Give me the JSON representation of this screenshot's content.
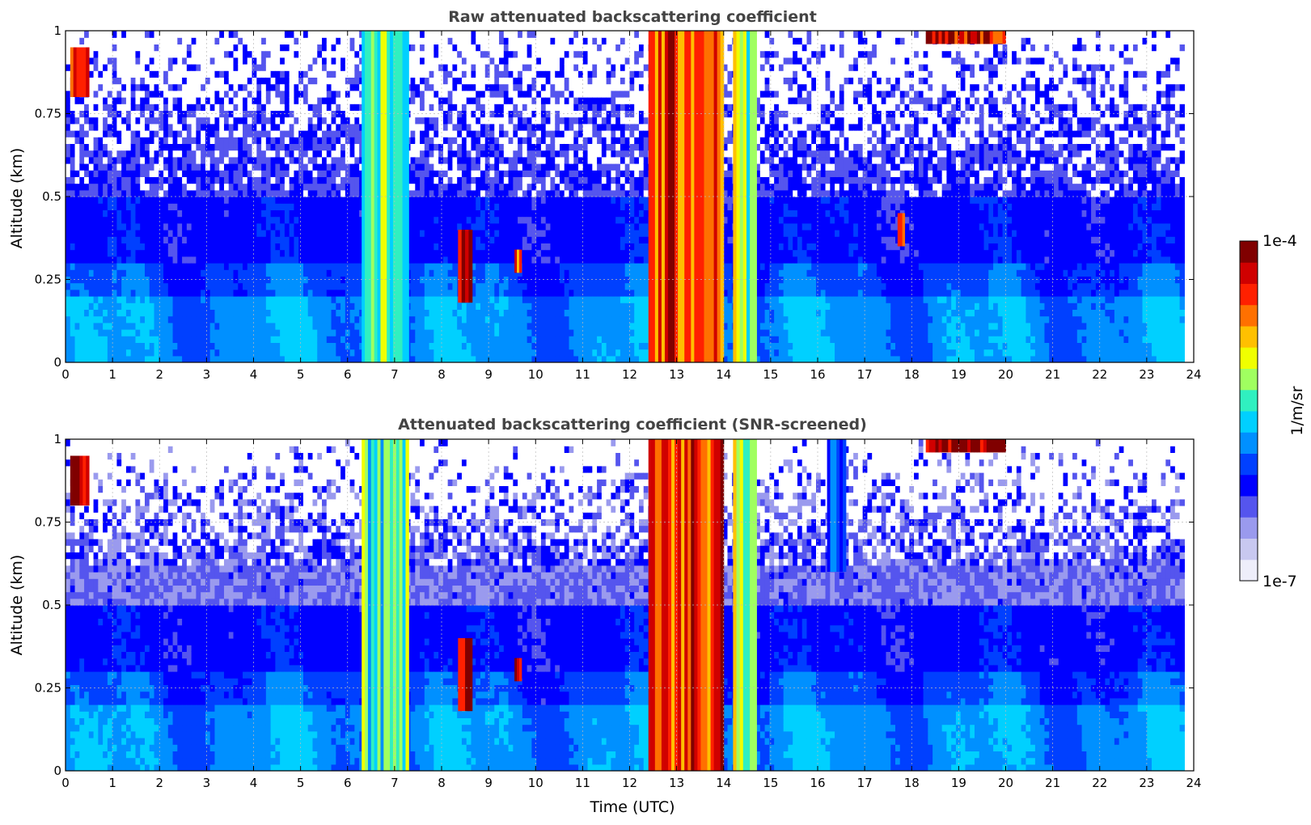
{
  "chart_data": [
    {
      "type": "heatmap",
      "title": "Raw attenuated backscattering coefficient",
      "xlabel": "",
      "ylabel": "Altitude (km)",
      "xlim": [
        0,
        24
      ],
      "ylim": [
        0,
        1
      ],
      "x_ticks": [
        "0",
        "1",
        "2",
        "3",
        "4",
        "5",
        "6",
        "7",
        "8",
        "9",
        "10",
        "11",
        "12",
        "13",
        "14",
        "15",
        "16",
        "17",
        "18",
        "19",
        "20",
        "21",
        "22",
        "23",
        "24"
      ],
      "y_ticks": [
        "0",
        "0.25",
        "0.5",
        "0.75",
        "1"
      ],
      "grid": true,
      "features": [
        {
          "t_start": 0.1,
          "t_end": 0.5,
          "alt_low": 0.8,
          "alt_high": 0.95,
          "level": 0.9
        },
        {
          "t_start": 6.3,
          "t_end": 7.3,
          "alt_low": 0.0,
          "alt_high": 1.0,
          "level": 0.55
        },
        {
          "t_start": 8.35,
          "t_end": 8.65,
          "alt_low": 0.18,
          "alt_high": 0.4,
          "level": 0.9
        },
        {
          "t_start": 9.55,
          "t_end": 9.7,
          "alt_low": 0.27,
          "alt_high": 0.34,
          "level": 0.8
        },
        {
          "t_start": 12.4,
          "t_end": 14.0,
          "alt_low": 0.0,
          "alt_high": 1.0,
          "level": 0.85
        },
        {
          "t_start": 14.2,
          "t_end": 14.7,
          "alt_low": 0.0,
          "alt_high": 1.0,
          "level": 0.6
        },
        {
          "t_start": 17.7,
          "t_end": 17.85,
          "alt_low": 0.35,
          "alt_high": 0.45,
          "level": 0.8
        },
        {
          "t_start": 18.3,
          "t_end": 20.0,
          "alt_low": 0.96,
          "alt_high": 1.0,
          "level": 0.9
        }
      ]
    },
    {
      "type": "heatmap",
      "title": "Attenuated backscattering coefficient (SNR-screened)",
      "xlabel": "Time (UTC)",
      "ylabel": "Altitude (km)",
      "xlim": [
        0,
        24
      ],
      "ylim": [
        0,
        1
      ],
      "x_ticks": [
        "0",
        "1",
        "2",
        "3",
        "4",
        "5",
        "6",
        "7",
        "8",
        "9",
        "10",
        "11",
        "12",
        "13",
        "14",
        "15",
        "16",
        "17",
        "18",
        "19",
        "20",
        "21",
        "22",
        "23",
        "24"
      ],
      "y_ticks": [
        "0",
        "0.25",
        "0.5",
        "0.75",
        "1"
      ],
      "grid": true,
      "features": [
        {
          "t_start": 0.1,
          "t_end": 0.5,
          "alt_low": 0.8,
          "alt_high": 0.95,
          "level": 1.0
        },
        {
          "t_start": 6.3,
          "t_end": 7.3,
          "alt_low": 0.0,
          "alt_high": 1.0,
          "level": 0.55
        },
        {
          "t_start": 8.35,
          "t_end": 8.65,
          "alt_low": 0.18,
          "alt_high": 0.4,
          "level": 1.0
        },
        {
          "t_start": 9.55,
          "t_end": 9.7,
          "alt_low": 0.27,
          "alt_high": 0.34,
          "level": 1.0
        },
        {
          "t_start": 12.4,
          "t_end": 14.0,
          "alt_low": 0.0,
          "alt_high": 1.0,
          "level": 0.85
        },
        {
          "t_start": 14.2,
          "t_end": 14.7,
          "alt_low": 0.0,
          "alt_high": 1.0,
          "level": 0.6
        },
        {
          "t_start": 16.2,
          "t_end": 16.6,
          "alt_low": 0.6,
          "alt_high": 1.0,
          "level": 0.3
        },
        {
          "t_start": 18.3,
          "t_end": 20.0,
          "alt_low": 0.96,
          "alt_high": 1.0,
          "level": 1.0
        }
      ]
    }
  ],
  "colorbar": {
    "label": "1/m/sr",
    "max_label": "1e-4",
    "min_label": "1e-7",
    "colors": [
      "#eeeefa",
      "#c8c8f0",
      "#9a9aee",
      "#5555ee",
      "#0000ff",
      "#0040ff",
      "#0090ff",
      "#00d0ff",
      "#30f0c0",
      "#a0ff60",
      "#f0ff00",
      "#ffc000",
      "#ff7000",
      "#ff2000",
      "#d00000",
      "#800000"
    ]
  }
}
